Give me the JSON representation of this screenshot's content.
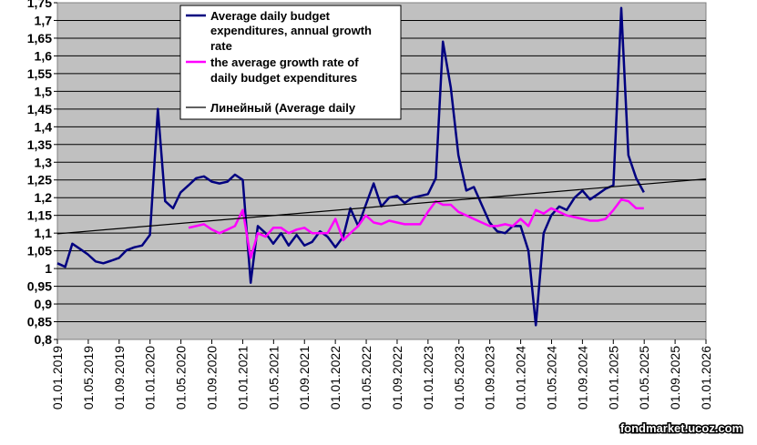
{
  "chart_data": {
    "type": "line",
    "x_axis_dates": [
      "2019-01-01",
      "2026-01-01"
    ],
    "ylim": [
      0.8,
      1.75
    ],
    "ytick_labels": [
      "0,8",
      "0,85",
      "0,9",
      "0,95",
      "1",
      "1,05",
      "1,1",
      "1,15",
      "1,2",
      "1,25",
      "1,3",
      "1,35",
      "1,4",
      "1,45",
      "1,5",
      "1,55",
      "1,6",
      "1,65",
      "1,7",
      "1,75"
    ],
    "xtick_labels": [
      "01.01.2019",
      "01.05.2019",
      "01.09.2019",
      "01.01.2020",
      "01.05.2020",
      "01.09.2020",
      "01.01.2021",
      "01.05.2021",
      "01.09.2021",
      "01.01.2022",
      "01.05.2022",
      "01.09.2022",
      "01.01.2023",
      "01.05.2023",
      "01.09.2023",
      "01.01.2024",
      "01.05.2024",
      "01.09.2024",
      "01.01.2025",
      "01.05.2025",
      "01.09.2025",
      "01.01.2026"
    ],
    "grid": true,
    "legend_position": "top-center",
    "series": [
      {
        "name": "Average daily budget expenditures,  annual growth rate",
        "legend_lines": [
          "Average daily budget",
          "expenditures,  annual growth",
          "rate"
        ],
        "color": "#000080",
        "dates": [
          "2019-01-01",
          "2019-02-01",
          "2019-03-01",
          "2019-04-01",
          "2019-05-01",
          "2019-06-01",
          "2019-07-01",
          "2019-08-01",
          "2019-09-01",
          "2019-10-01",
          "2019-11-01",
          "2019-12-01",
          "2020-01-01",
          "2020-02-01",
          "2020-03-01",
          "2020-04-01",
          "2020-05-01",
          "2020-06-01",
          "2020-07-01",
          "2020-08-01",
          "2020-09-01",
          "2020-10-01",
          "2020-11-01",
          "2020-12-01",
          "2021-01-01",
          "2021-02-01",
          "2021-03-01",
          "2021-04-01",
          "2021-05-01",
          "2021-06-01",
          "2021-07-01",
          "2021-08-01",
          "2021-09-01",
          "2021-10-01",
          "2021-11-01",
          "2021-12-01",
          "2022-01-01",
          "2022-02-01",
          "2022-03-01",
          "2022-04-01",
          "2022-05-01",
          "2022-06-01",
          "2022-07-01",
          "2022-08-01",
          "2022-09-01",
          "2022-10-01",
          "2022-11-01",
          "2022-12-01",
          "2023-01-01",
          "2023-02-01",
          "2023-03-01",
          "2023-04-01",
          "2023-05-01",
          "2023-06-01",
          "2023-07-01",
          "2023-08-01",
          "2023-09-01",
          "2023-10-01",
          "2023-11-01",
          "2023-12-01",
          "2024-01-01",
          "2024-02-01",
          "2024-03-01",
          "2024-04-01",
          "2024-05-01",
          "2024-06-01",
          "2024-07-01",
          "2024-08-01",
          "2024-09-01",
          "2024-10-01",
          "2024-11-01",
          "2024-12-01",
          "2025-01-01",
          "2025-02-01",
          "2025-03-01",
          "2025-04-01",
          "2025-05-01"
        ],
        "values": [
          1.015,
          1.005,
          1.07,
          1.055,
          1.04,
          1.02,
          1.015,
          1.022,
          1.03,
          1.052,
          1.06,
          1.065,
          1.095,
          1.45,
          1.19,
          1.17,
          1.215,
          1.235,
          1.255,
          1.26,
          1.245,
          1.24,
          1.245,
          1.265,
          1.25,
          0.96,
          1.12,
          1.1,
          1.07,
          1.1,
          1.065,
          1.095,
          1.065,
          1.075,
          1.105,
          1.09,
          1.06,
          1.09,
          1.17,
          1.12,
          1.18,
          1.24,
          1.175,
          1.2,
          1.205,
          1.185,
          1.2,
          1.205,
          1.21,
          1.255,
          1.64,
          1.51,
          1.32,
          1.22,
          1.23,
          1.18,
          1.13,
          1.105,
          1.1,
          1.12,
          1.12,
          1.05,
          0.84,
          1.1,
          1.15,
          1.175,
          1.165,
          1.2,
          1.22,
          1.195,
          1.21,
          1.225,
          1.235,
          1.735,
          1.32,
          1.255,
          1.215
        ]
      },
      {
        "name": "the average growth rate of daily budget expenditures",
        "legend_lines": [
          "the average growth rate of",
          "daily budget expenditures"
        ],
        "color": "#ff00ff",
        "dates": [
          "2020-06-01",
          "2020-07-01",
          "2020-08-01",
          "2020-09-01",
          "2020-10-01",
          "2020-11-01",
          "2020-12-01",
          "2021-01-01",
          "2021-02-01",
          "2021-03-01",
          "2021-04-01",
          "2021-05-01",
          "2021-06-01",
          "2021-07-01",
          "2021-08-01",
          "2021-09-01",
          "2021-10-01",
          "2021-11-01",
          "2021-12-01",
          "2022-01-01",
          "2022-02-01",
          "2022-03-01",
          "2022-04-01",
          "2022-05-01",
          "2022-06-01",
          "2022-07-01",
          "2022-08-01",
          "2022-09-01",
          "2022-10-01",
          "2022-11-01",
          "2022-12-01",
          "2023-01-01",
          "2023-02-01",
          "2023-03-01",
          "2023-04-01",
          "2023-05-01",
          "2023-06-01",
          "2023-07-01",
          "2023-08-01",
          "2023-09-01",
          "2023-10-01",
          "2023-11-01",
          "2023-12-01",
          "2024-01-01",
          "2024-02-01",
          "2024-03-01",
          "2024-04-01",
          "2024-05-01",
          "2024-06-01",
          "2024-07-01",
          "2024-08-01",
          "2024-09-01",
          "2024-10-01",
          "2024-11-01",
          "2024-12-01",
          "2025-01-01",
          "2025-02-01",
          "2025-03-01",
          "2025-04-01",
          "2025-05-01"
        ],
        "values": [
          1.115,
          1.12,
          1.125,
          1.11,
          1.1,
          1.11,
          1.12,
          1.165,
          1.03,
          1.1,
          1.09,
          1.115,
          1.115,
          1.1,
          1.11,
          1.115,
          1.1,
          1.1,
          1.1,
          1.14,
          1.08,
          1.1,
          1.12,
          1.15,
          1.13,
          1.125,
          1.135,
          1.13,
          1.125,
          1.125,
          1.125,
          1.16,
          1.19,
          1.18,
          1.18,
          1.16,
          1.15,
          1.14,
          1.13,
          1.12,
          1.12,
          1.125,
          1.12,
          1.14,
          1.12,
          1.165,
          1.155,
          1.17,
          1.16,
          1.15,
          1.145,
          1.14,
          1.135,
          1.135,
          1.14,
          1.165,
          1.195,
          1.19,
          1.17,
          1.17
        ]
      },
      {
        "name": "Линейный (Average daily",
        "legend_lines": [
          "Линейный (Average daily"
        ],
        "color": "#000000",
        "dates": [
          "2019-01-01",
          "2026-01-01"
        ],
        "values": [
          1.098,
          1.253
        ]
      }
    ],
    "credit": "fondmarket.ucoz.com"
  }
}
